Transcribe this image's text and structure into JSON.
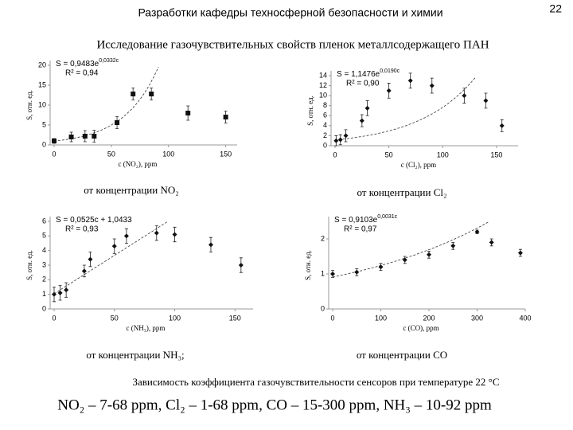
{
  "header": {
    "title": "Разработки кафедры техносферной безопасности и химии",
    "page": "22"
  },
  "subtitle": "Исследование газочувствительных свойств пленок металлсодержащего ПАН",
  "caption": "Зависимость коэффициента газочувствительности сенсоров при температуре 22 °C",
  "ranges": "NO₂ – 7-68 ppm, Cl₂ – 1-68 ppm, CO – 15-300 ppm, NH₃ – 10-92 ppm",
  "chart_data": [
    {
      "type": "scatter",
      "label": "от концентрации NO₂",
      "xlabel": "c (NO₂), ppm",
      "ylabel": "S, отн. ед.",
      "equation": "S = 0,9483e",
      "equation_exp": "0,0332c",
      "r2": "R² = 0,94",
      "trend": {
        "kind": "exp",
        "a": 0.9483,
        "b": 0.0332
      },
      "marker": "square",
      "color": "#111",
      "x": [
        0,
        15,
        27,
        35,
        55,
        69,
        85,
        117,
        150
      ],
      "values": [
        1,
        2,
        2.2,
        2.2,
        5.6,
        12.8,
        12.8,
        8,
        7
      ],
      "errors": [
        0.6,
        1.2,
        1.4,
        1.5,
        1.5,
        1.5,
        1.5,
        1.8,
        1.5
      ],
      "xlim": [
        0,
        160
      ],
      "ylim": [
        0,
        20
      ],
      "xticks": [
        0,
        50,
        100,
        150
      ],
      "yticks": [
        0,
        5,
        10,
        15,
        20
      ]
    },
    {
      "type": "scatter",
      "label": "от концентрации Cl₂",
      "xlabel": "c (Cl₂), ppm",
      "ylabel": "S, отн. ед.",
      "equation": "S = 1,1476e",
      "equation_exp": "0,0190c",
      "r2": "R² = 0,90",
      "trend": {
        "kind": "exp",
        "a": 1.1476,
        "b": 0.019
      },
      "marker": "diamond",
      "color": "#111",
      "x": [
        1,
        5,
        10,
        25,
        30,
        50,
        70,
        90,
        120,
        140,
        155
      ],
      "values": [
        1,
        1.2,
        2,
        5,
        7.5,
        11,
        13,
        12,
        10,
        9,
        4
      ],
      "errors": [
        1,
        1,
        1.2,
        1.2,
        1.5,
        1.5,
        1.5,
        1.5,
        1.5,
        1.5,
        1.2
      ],
      "xlim": [
        0,
        170
      ],
      "ylim": [
        0,
        14
      ],
      "xticks": [
        0,
        50,
        100,
        150
      ],
      "yticks": [
        0,
        2,
        4,
        6,
        8,
        10,
        12,
        14
      ]
    },
    {
      "type": "scatter",
      "label": "от концентрации NH₃;",
      "xlabel": "c (NH₃), ppm",
      "ylabel": "S, отн. ед.",
      "equation": "S = 0,0525c + 1,0433",
      "r2": "R² = 0,93",
      "trend": {
        "kind": "linear",
        "a": 0.0525,
        "b": 1.0433
      },
      "marker": "diamond",
      "color": "#111",
      "x": [
        0,
        5,
        10,
        25,
        30,
        50,
        60,
        85,
        100,
        130,
        155
      ],
      "values": [
        1,
        1.1,
        1.3,
        2.6,
        3.4,
        4.3,
        5,
        5.2,
        5.1,
        4.4,
        3
      ],
      "errors": [
        0.5,
        0.5,
        0.5,
        0.4,
        0.5,
        0.5,
        0.5,
        0.5,
        0.5,
        0.5,
        0.5
      ],
      "xlim": [
        0,
        165
      ],
      "ylim": [
        0,
        6
      ],
      "xticks": [
        0,
        50,
        100,
        150
      ],
      "yticks": [
        0,
        1,
        2,
        3,
        4,
        5,
        6
      ]
    },
    {
      "type": "scatter",
      "label": "от концентрации CO",
      "xlabel": "c (CO), ppm",
      "ylabel": "S, отн. ед.",
      "equation": "S = 0,9103e",
      "equation_exp": "0,0031c",
      "r2": "R² = 0,97",
      "trend": {
        "kind": "exp",
        "a": 0.9103,
        "b": 0.0031
      },
      "marker": "diamond",
      "color": "#111",
      "x": [
        0,
        50,
        100,
        150,
        200,
        250,
        300,
        330,
        390
      ],
      "values": [
        1,
        1.05,
        1.2,
        1.4,
        1.55,
        1.8,
        2.2,
        1.9,
        1.6
      ],
      "errors": [
        0.1,
        0.1,
        0.1,
        0.1,
        0.1,
        0.1,
        0.05,
        0.1,
        0.1
      ],
      "xlim": [
        0,
        400
      ],
      "ylim": [
        0,
        2.5
      ],
      "xticks": [
        0,
        100,
        200,
        300,
        400
      ],
      "yticks": [
        0,
        1,
        2
      ]
    }
  ]
}
